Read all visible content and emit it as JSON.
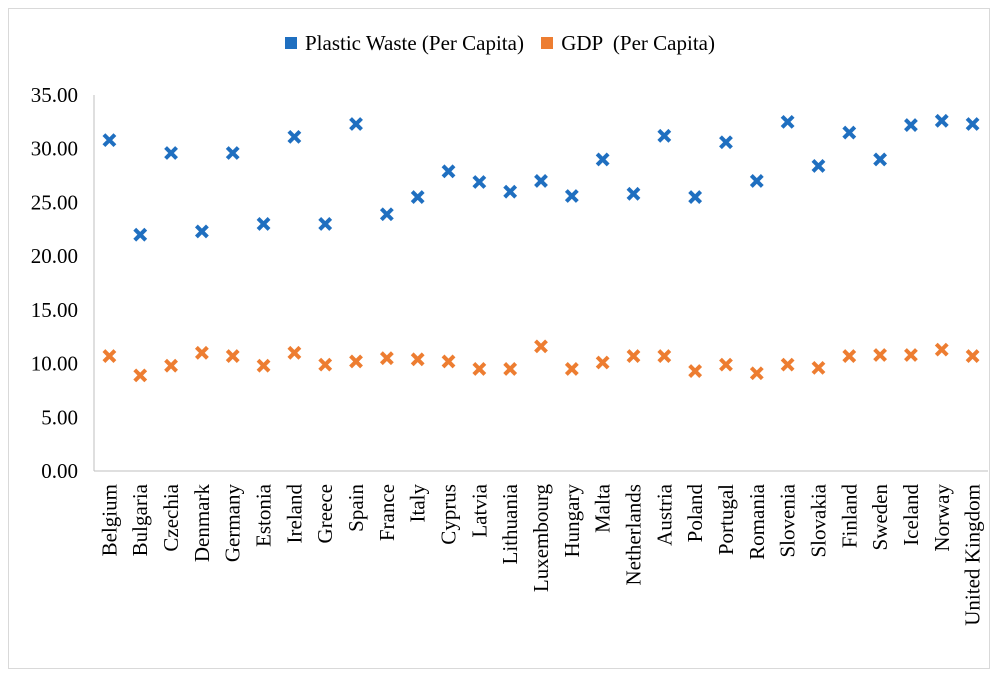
{
  "chart_data": {
    "type": "scatter",
    "title": "",
    "xlabel": "",
    "ylabel": "",
    "ylim": [
      0,
      35
    ],
    "yticks": [
      "0.00",
      "5.00",
      "10.00",
      "15.00",
      "20.00",
      "25.00",
      "30.00",
      "35.00"
    ],
    "grid": false,
    "legend_position": "top-center",
    "categories": [
      "Belgium",
      "Bulgaria",
      "Czechia",
      "Denmark",
      "Germany",
      "Estonia",
      "Ireland",
      "Greece",
      "Spain",
      "France",
      "Italy",
      "Cyprus",
      "Latvia",
      "Lithuania",
      "Luxembourg",
      "Hungary",
      "Malta",
      "Netherlands",
      "Austria",
      "Poland",
      "Portugal",
      "Romania",
      "Slovenia",
      "Slovakia",
      "Finland",
      "Sweden",
      "Iceland",
      "Norway",
      "United Kingdom"
    ],
    "series": [
      {
        "name": "Plastic Waste (Per Capita)",
        "color": "#1f6fc0",
        "marker": "x",
        "values": [
          30.8,
          22.0,
          29.6,
          22.3,
          29.6,
          23.0,
          31.1,
          23.0,
          32.3,
          23.9,
          25.5,
          27.9,
          26.9,
          26.0,
          27.0,
          25.6,
          29.0,
          25.8,
          31.2,
          25.5,
          30.6,
          27.0,
          32.5,
          28.4,
          31.5,
          29.0,
          32.2,
          32.6,
          32.3
        ]
      },
      {
        "name": "GDP  (Per Capita)",
        "color": "#ed7d31",
        "marker": "x",
        "values": [
          10.7,
          8.9,
          9.8,
          11.0,
          10.7,
          9.8,
          11.0,
          9.9,
          10.2,
          10.5,
          10.4,
          10.2,
          9.5,
          9.5,
          11.6,
          9.5,
          10.1,
          10.7,
          10.7,
          9.3,
          9.9,
          9.1,
          9.9,
          9.6,
          10.7,
          10.8,
          10.8,
          11.3,
          10.7
        ]
      }
    ]
  }
}
